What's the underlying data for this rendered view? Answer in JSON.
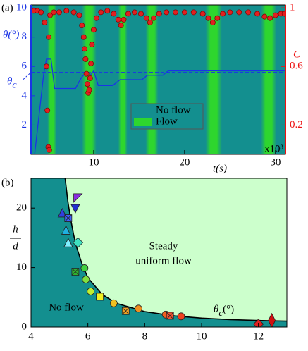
{
  "chart_data": [
    {
      "type": "line",
      "panel_label": "(a)",
      "xlabel": "t(s)",
      "x_multiplier": "x10³",
      "ylabel": "θ(°)",
      "y2label": "C",
      "xlim": [
        3.1,
        31.1
      ],
      "xticks": [
        10,
        20,
        30
      ],
      "ylim": [
        0,
        10.2
      ],
      "yticks": [
        2,
        4,
        6,
        8,
        10
      ],
      "axis_color": "#1a33e6",
      "y2lim": [
        0,
        1.02
      ],
      "y2ticks": [
        0.2,
        0.6,
        1
      ],
      "axis2_color": "#ee1111",
      "regions": [
        {
          "name": "No flow",
          "color": "#138f8f"
        },
        {
          "name": "Flow",
          "color": "#2ed62e",
          "intervals": [
            [
              4.9,
              5.9
            ],
            [
              8.7,
              10.3
            ],
            [
              12.7,
              13.7
            ],
            [
              15.7,
              17.1
            ],
            [
              22.3,
              24.1
            ],
            [
              28.4,
              30.1
            ]
          ]
        }
      ],
      "reference_line": {
        "symbol": "θ",
        "subscript": "c",
        "value": 5.6,
        "color": "#1a33e6"
      },
      "series": [
        {
          "color": "#1a33e6",
          "x": [
            3.2,
            3.5,
            4.5,
            4.8,
            5.3,
            5.7,
            8.0,
            8.6,
            9.0,
            9.6,
            10.0,
            10.5,
            12.1,
            12.9,
            15.3,
            15.9,
            17.6,
            18.2,
            31.0
          ],
          "values": [
            0,
            0,
            5.5,
            6.5,
            6.5,
            4.5,
            4.5,
            5.2,
            5.5,
            5.4,
            5.7,
            4.7,
            4.7,
            5.1,
            5.1,
            5.4,
            5.4,
            5.7,
            5.7
          ]
        },
        {
          "color": "#e02020",
          "axis": "y2",
          "x": [
            3.4,
            3.8,
            4.2,
            4.6,
            4.8,
            4.9,
            5.0,
            5.1,
            5.05,
            5.2,
            5.6,
            6.2,
            7.0,
            7.8,
            8.4,
            8.7,
            8.9,
            9.0,
            9.1,
            9.2,
            9.3,
            9.4,
            9.5,
            9.6,
            9.7,
            9.8,
            10.0,
            10.3,
            10.8,
            11.5,
            12.2,
            12.7,
            13.0,
            13.3,
            13.8,
            14.5,
            15.2,
            15.8,
            16.2,
            16.6,
            17.2,
            18.0,
            19.0,
            20.0,
            21.0,
            22.0,
            22.6,
            23.1,
            23.6,
            24.2,
            25.0,
            26.0,
            27.0,
            28.0,
            28.8,
            29.4,
            30.0,
            30.6,
            31.0
          ],
          "values": [
            0.98,
            0.98,
            0.97,
            0.9,
            0.6,
            0.3,
            0.05,
            0.03,
            0.8,
            0.95,
            0.97,
            0.97,
            0.98,
            0.97,
            0.95,
            0.88,
            0.8,
            0.72,
            0.65,
            0.55,
            0.48,
            0.42,
            0.44,
            0.52,
            0.62,
            0.75,
            0.85,
            0.93,
            0.97,
            0.98,
            0.96,
            0.92,
            0.88,
            0.92,
            0.96,
            0.97,
            0.96,
            0.93,
            0.9,
            0.93,
            0.96,
            0.97,
            0.97,
            0.97,
            0.97,
            0.96,
            0.93,
            0.9,
            0.93,
            0.96,
            0.97,
            0.97,
            0.97,
            0.96,
            0.94,
            0.93,
            0.95,
            0.96,
            0.96
          ]
        }
      ]
    },
    {
      "type": "scatter",
      "panel_label": "(b)",
      "xlabel": {
        "symbol": "θ",
        "subscript": "c",
        "unit": "(°)"
      },
      "ylabel": {
        "numerator": "h",
        "denominator": "d"
      },
      "xlim": [
        4,
        13
      ],
      "xticks": [
        4,
        6,
        8,
        10,
        12
      ],
      "ylim": [
        0,
        25
      ],
      "yticks": [
        0,
        10,
        20
      ],
      "fill_below": "#138f8f",
      "fill_above": "#ccffcc",
      "annotations": {
        "above": [
          "Steady",
          "uniform flow"
        ],
        "below": "No flow"
      },
      "curve": {
        "color": "#000000",
        "x": [
          5.2,
          5.3,
          5.4,
          5.5,
          5.6,
          5.8,
          6.0,
          6.5,
          7.0,
          8.0,
          9.0,
          10.0,
          11.0,
          12.0,
          13.0
        ],
        "values": [
          25,
          21,
          18,
          15.5,
          13.5,
          10.5,
          8.3,
          5.5,
          4.0,
          2.6,
          1.9,
          1.5,
          1.25,
          1.1,
          1.0
        ]
      },
      "series": [
        {
          "x": [
            5.65,
            5.1,
            5.56,
            5.31,
            5.23,
            5.31,
            5.65,
            5.56,
            5.88,
            5.93,
            6.1,
            6.42,
            6.91,
            7.33,
            7.78,
            8.74,
            8.89,
            9.28,
            12.0,
            12.47
          ],
          "values": [
            21.7,
            19.2,
            19.9,
            18.3,
            16.3,
            14.2,
            14.2,
            9.3,
            9.9,
            8.0,
            6.0,
            5.1,
            4.0,
            2.7,
            3.1,
            2.1,
            1.9,
            1.8,
            0.5,
            1.1
          ],
          "colors": [
            "#8a2be2",
            "#3040e0",
            "#2030d0",
            "#4060ff",
            "#20b0e0",
            "#80f0ff",
            "#40e0c0",
            "#30b030",
            "#40d040",
            "#80e040",
            "#c0f030",
            "#f0f020",
            "#f0c020",
            "#f0a020",
            "#f09020",
            "#f06020",
            "#f05030",
            "#f04020",
            "#e02020",
            "#d01010"
          ],
          "markers": [
            "flag",
            "triangle-up",
            "triangle-down",
            "square-x",
            "triangle-up",
            "triangle-up",
            "diamond",
            "square-x",
            "circle",
            "circle",
            "circle",
            "square",
            "circle",
            "square-x",
            "circle",
            "circle",
            "square-x",
            "circle",
            "diamond",
            "diamond-tall"
          ]
        }
      ]
    }
  ]
}
